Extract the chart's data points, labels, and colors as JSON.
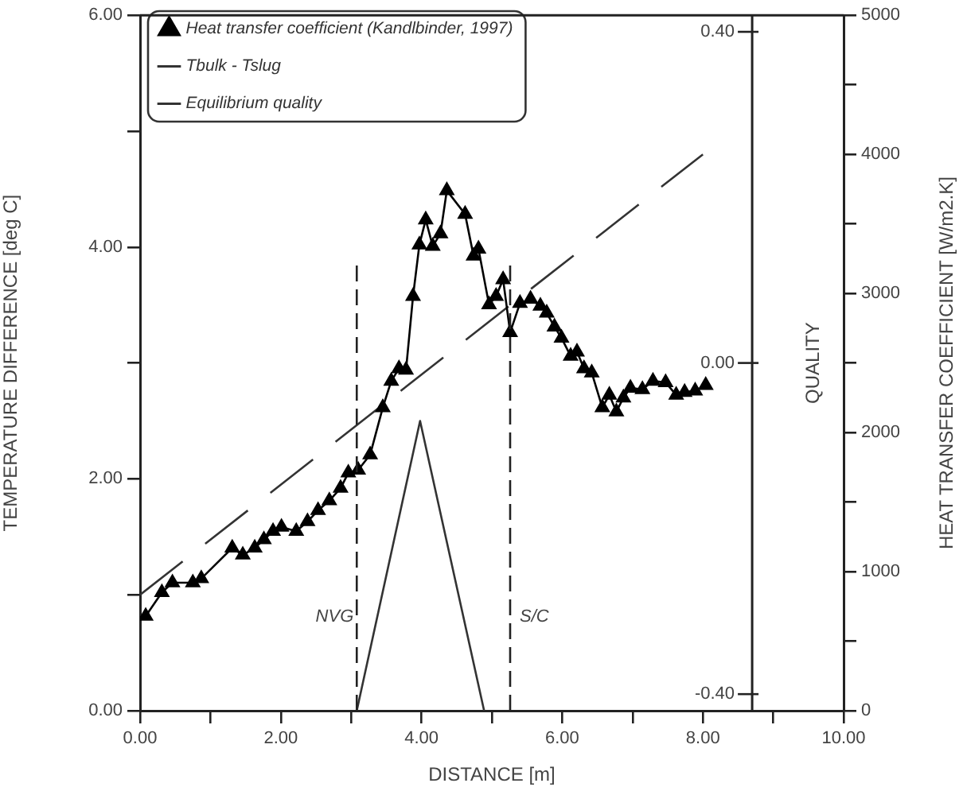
{
  "chart_data": {
    "type": "line",
    "xlabel": "DISTANCE [m]",
    "ylabel": "TEMPERATURE DIFFERENCE [deg C]",
    "y2label": "QUALITY",
    "y3label": "HEAT TRANSFER COEFFICIENT [W/m2.K]",
    "xlim": [
      0,
      10
    ],
    "xticks": [
      {
        "value": 0,
        "label": "0.00"
      },
      {
        "value": 1,
        "label": null
      },
      {
        "value": 2,
        "label": "2.00"
      },
      {
        "value": 3,
        "label": null
      },
      {
        "value": 4,
        "label": "4.00"
      },
      {
        "value": 5,
        "label": null
      },
      {
        "value": 6,
        "label": "6.00"
      },
      {
        "value": 7,
        "label": null
      },
      {
        "value": 8,
        "label": "8.00"
      },
      {
        "value": 9,
        "label": null
      },
      {
        "value": 10,
        "label": "10.00"
      }
    ],
    "ylim": [
      0,
      6
    ],
    "yticks": [
      {
        "value": 0,
        "label": "0.00"
      },
      {
        "value": 1,
        "label": null
      },
      {
        "value": 2,
        "label": "2.00"
      },
      {
        "value": 3,
        "label": null
      },
      {
        "value": 4,
        "label": "4.00"
      },
      {
        "value": 5,
        "label": null
      },
      {
        "value": 6,
        "label": "6.00"
      }
    ],
    "y2lim": [
      -0.42,
      0.42
    ],
    "y2ticks": [
      {
        "value": -0.4,
        "label": "-0.40"
      },
      {
        "value": 0,
        "label": "0.00"
      },
      {
        "value": 0.4,
        "label": "0.40"
      }
    ],
    "y3lim": [
      0,
      5000
    ],
    "y3ticks": [
      0,
      {
        "value": 500,
        "label": null
      },
      1000,
      {
        "value": 1500,
        "label": null
      },
      2000,
      {
        "value": 2500,
        "label": null
      },
      3000,
      {
        "value": 3500,
        "label": null
      },
      4000,
      {
        "value": 4500,
        "label": null
      },
      5000
    ],
    "legend": "top left",
    "grid": false,
    "ref_lines": [
      {
        "axis": "x",
        "value": 3.08,
        "label": "NVG",
        "line_style": "dashed"
      },
      {
        "axis": "x",
        "value": 5.26,
        "label": "S/C",
        "line_style": "dashed"
      }
    ],
    "series": [
      {
        "name": "Heat transfer coefficient (Kandlbinder, 1997)",
        "color": "#000000",
        "axis": "y3",
        "marker": "triangle",
        "line_style": "solid",
        "x": [
          0.08,
          0.31,
          0.46,
          0.75,
          0.87,
          1.31,
          1.46,
          1.63,
          1.76,
          1.89,
          2.01,
          2.22,
          2.38,
          2.53,
          2.69,
          2.85,
          2.96,
          3.1,
          3.27,
          3.45,
          3.57,
          3.68,
          3.78,
          3.88,
          3.97,
          4.06,
          4.16,
          4.27,
          4.36,
          4.62,
          4.74,
          4.81,
          4.96,
          5.06,
          5.16,
          5.26,
          5.4,
          5.55,
          5.69,
          5.78,
          5.89,
          5.99,
          6.12,
          6.21,
          6.31,
          6.42,
          6.57,
          6.67,
          6.77,
          6.87,
          6.97,
          7.14,
          7.29,
          7.47,
          7.62,
          7.74,
          7.89,
          8.04
        ],
        "values": [
          680,
          850,
          920,
          920,
          950,
          1170,
          1120,
          1170,
          1230,
          1290,
          1320,
          1290,
          1360,
          1440,
          1510,
          1600,
          1710,
          1730,
          1840,
          2180,
          2370,
          2460,
          2450,
          2980,
          3350,
          3530,
          3340,
          3430,
          3740,
          3570,
          3270,
          3320,
          2920,
          2980,
          3100,
          2720,
          2930,
          2960,
          2910,
          2860,
          2760,
          2680,
          2550,
          2580,
          2460,
          2430,
          2180,
          2270,
          2150,
          2250,
          2320,
          2310,
          2370,
          2360,
          2270,
          2290,
          2300,
          2340
        ]
      },
      {
        "name": "Tbulk - Tslug",
        "color": "#333333",
        "axis": "y",
        "marker": "none",
        "line_style": "dashed",
        "x": [
          0,
          8.0
        ],
        "values": [
          1.0,
          4.8
        ]
      },
      {
        "name": "Equilibrium quality",
        "color": "#333333",
        "axis": "y2",
        "marker": "none",
        "line_style": "solid",
        "x": [
          3.08,
          3.98,
          4.89
        ],
        "values": [
          -0.42,
          -0.07,
          -0.42
        ]
      }
    ]
  }
}
